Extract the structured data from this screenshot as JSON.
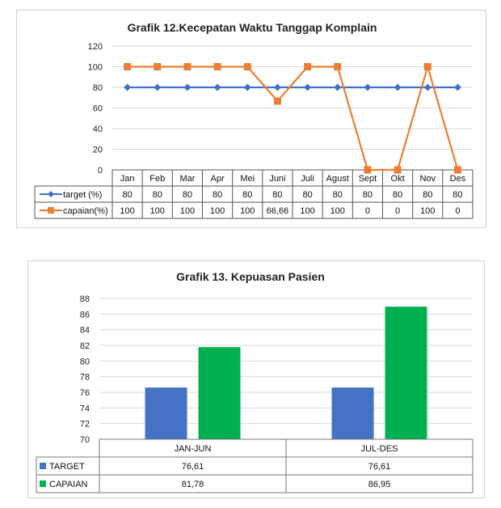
{
  "chart_data": [
    {
      "type": "line",
      "title": "Grafik 12.Kecepatan Waktu Tanggap Komplain",
      "categories": [
        "Jan",
        "Feb",
        "Mar",
        "Apr",
        "Mei",
        "Juni",
        "Juli",
        "Agust",
        "Sept",
        "Okt",
        "Nov",
        "Des"
      ],
      "ylim": [
        0,
        120
      ],
      "yticks": [
        0,
        20,
        40,
        60,
        80,
        100,
        120
      ],
      "grid": true,
      "legend": "data-table",
      "series": [
        {
          "name": "target (%)",
          "color": "#4472c4",
          "marker": "diamond",
          "values": [
            80,
            80,
            80,
            80,
            80,
            80,
            80,
            80,
            80,
            80,
            80,
            80
          ],
          "labels": [
            "80",
            "80",
            "80",
            "80",
            "80",
            "80",
            "80",
            "80",
            "80",
            "80",
            "80",
            "80"
          ]
        },
        {
          "name": "capaian(%)",
          "color": "#ed7d31",
          "marker": "square",
          "values": [
            100,
            100,
            100,
            100,
            100,
            66.66,
            100,
            100,
            0,
            0,
            100,
            0
          ],
          "labels": [
            "100",
            "100",
            "100",
            "100",
            "100",
            "66,66",
            "100",
            "100",
            "0",
            "0",
            "100",
            "0"
          ]
        }
      ]
    },
    {
      "type": "bar",
      "title": "Grafik 13. Kepuasan Pasien",
      "categories": [
        "JAN-JUN",
        "JUL-DES"
      ],
      "ylim": [
        70,
        88
      ],
      "yticks": [
        70,
        72,
        74,
        76,
        78,
        80,
        82,
        84,
        86,
        88
      ],
      "grid": true,
      "legend": "data-table",
      "series": [
        {
          "name": "TARGET",
          "color": "#4472c4",
          "values": [
            76.61,
            76.61
          ],
          "labels": [
            "76,61",
            "76,61"
          ]
        },
        {
          "name": "CAPAIAN",
          "color": "#00b050",
          "values": [
            81.78,
            86.95
          ],
          "labels": [
            "81,78",
            "86,95"
          ]
        }
      ]
    }
  ]
}
